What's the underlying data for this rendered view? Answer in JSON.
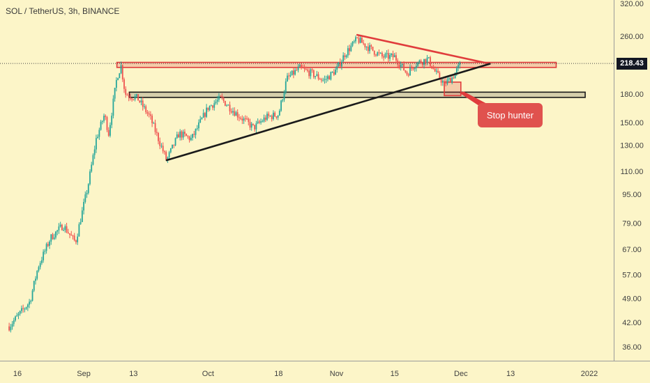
{
  "header": {
    "title": "SOL / TetherUS, 3h, BINANCE"
  },
  "price_label": "218.43",
  "callout": {
    "text": "Stop hunter"
  },
  "colors": {
    "background": "#fcf5c8",
    "bull": "#26a69a",
    "bear": "#ef5350",
    "resistance": "#e03c3c",
    "support": "#1a1a1a"
  },
  "chart_data": {
    "type": "candlestick",
    "title": "SOL / TetherUS, 3h, BINANCE",
    "y_scale": "log",
    "ylim": [
      32,
      335
    ],
    "y_ticks": [
      "320.00",
      "260.00",
      "218.43",
      "180.00",
      "150.00",
      "130.00",
      "110.00",
      "95.00",
      "79.00",
      "67.00",
      "57.00",
      "49.00",
      "42.00",
      "36.00"
    ],
    "x_ticks": [
      "16",
      "Sep",
      "13",
      "Oct",
      "18",
      "Nov",
      "15",
      "Dec",
      "13",
      "2022"
    ],
    "last_price": 218.43,
    "price_path": [
      {
        "d": "2021-08-14",
        "p": 41
      },
      {
        "d": "2021-08-19",
        "p": 48
      },
      {
        "d": "2021-08-21",
        "p": 60
      },
      {
        "d": "2021-08-24",
        "p": 72
      },
      {
        "d": "2021-08-27",
        "p": 78
      },
      {
        "d": "2021-08-30",
        "p": 70
      },
      {
        "d": "2021-09-02",
        "p": 100
      },
      {
        "d": "2021-09-04",
        "p": 135
      },
      {
        "d": "2021-09-06",
        "p": 158
      },
      {
        "d": "2021-09-07",
        "p": 140
      },
      {
        "d": "2021-09-09",
        "p": 200
      },
      {
        "d": "2021-09-10",
        "p": 215
      },
      {
        "d": "2021-09-11",
        "p": 180
      },
      {
        "d": "2021-09-14",
        "p": 175
      },
      {
        "d": "2021-09-17",
        "p": 155
      },
      {
        "d": "2021-09-21",
        "p": 118
      },
      {
        "d": "2021-09-24",
        "p": 140
      },
      {
        "d": "2021-09-27",
        "p": 135
      },
      {
        "d": "2021-10-01",
        "p": 165
      },
      {
        "d": "2021-10-04",
        "p": 175
      },
      {
        "d": "2021-10-08",
        "p": 158
      },
      {
        "d": "2021-10-12",
        "p": 145
      },
      {
        "d": "2021-10-15",
        "p": 155
      },
      {
        "d": "2021-10-18",
        "p": 158
      },
      {
        "d": "2021-10-20",
        "p": 198
      },
      {
        "d": "2021-10-23",
        "p": 212
      },
      {
        "d": "2021-10-26",
        "p": 205
      },
      {
        "d": "2021-10-29",
        "p": 196
      },
      {
        "d": "2021-11-01",
        "p": 210
      },
      {
        "d": "2021-11-03",
        "p": 232
      },
      {
        "d": "2021-11-06",
        "p": 255
      },
      {
        "d": "2021-11-08",
        "p": 245
      },
      {
        "d": "2021-11-12",
        "p": 228
      },
      {
        "d": "2021-11-15",
        "p": 228
      },
      {
        "d": "2021-11-18",
        "p": 205
      },
      {
        "d": "2021-11-20",
        "p": 218
      },
      {
        "d": "2021-11-23",
        "p": 225
      },
      {
        "d": "2021-11-25",
        "p": 205
      },
      {
        "d": "2021-11-27",
        "p": 192
      },
      {
        "d": "2021-11-29",
        "p": 200
      },
      {
        "d": "2021-12-01",
        "p": 218.43
      }
    ],
    "annotations": [
      {
        "type": "trendline",
        "name": "descending resistance",
        "color": "#e03c3c",
        "points": [
          {
            "d": "2021-11-06",
            "p": 262
          },
          {
            "d": "2021-12-08",
            "p": 218
          }
        ]
      },
      {
        "type": "trendline",
        "name": "ascending support",
        "color": "#1a1a1a",
        "points": [
          {
            "d": "2021-09-21",
            "p": 118
          },
          {
            "d": "2021-12-08",
            "p": 218
          }
        ]
      },
      {
        "type": "zone",
        "name": "resistance zone",
        "color": "#e03c3c",
        "from": "2021-09-09",
        "to": "2021-12-24",
        "low": 213,
        "high": 220
      },
      {
        "type": "zone",
        "name": "support zone",
        "color": "#1a1a1a",
        "from": "2021-09-12",
        "to": "2021-12-31",
        "low": 176,
        "high": 182
      },
      {
        "type": "box",
        "name": "stop hunt box",
        "color": "#e03c3c",
        "from": "2021-11-27",
        "to": "2021-12-01",
        "low": 178,
        "high": 194
      }
    ]
  }
}
